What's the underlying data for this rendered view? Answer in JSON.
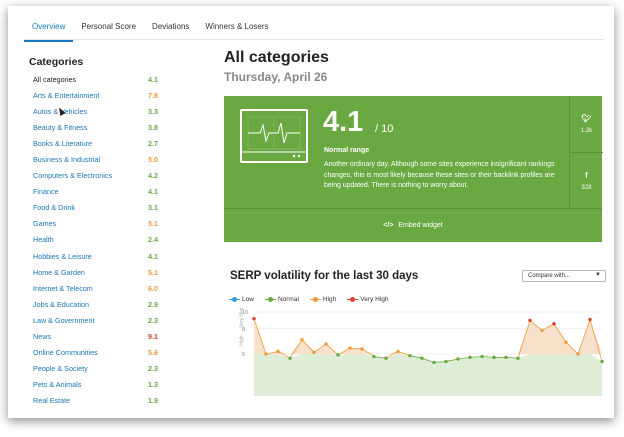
{
  "tabs": [
    "Overview",
    "Personal Score",
    "Deviations",
    "Winners & Losers"
  ],
  "sidebar": {
    "heading": "Categories",
    "items": [
      {
        "name": "All categories",
        "score": "4.1",
        "color": "#6aa842"
      },
      {
        "name": "Arts & Entertainment",
        "score": "7.8",
        "color": "#ef9a3a"
      },
      {
        "name": "Autos & Vehicles",
        "score": "3.3",
        "color": "#6aa842"
      },
      {
        "name": "Beauty & Fitness",
        "score": "3.8",
        "color": "#6aa842"
      },
      {
        "name": "Books & Literature",
        "score": "2.7",
        "color": "#6aa842"
      },
      {
        "name": "Business & Industrial",
        "score": "5.0",
        "color": "#ef9a3a"
      },
      {
        "name": "Computers & Electronics",
        "score": "4.2",
        "color": "#6aa842"
      },
      {
        "name": "Finance",
        "score": "4.1",
        "color": "#6aa842"
      },
      {
        "name": "Food & Drink",
        "score": "3.1",
        "color": "#6aa842"
      },
      {
        "name": "Games",
        "score": "5.1",
        "color": "#ef9a3a"
      },
      {
        "name": "Health",
        "score": "2.4",
        "color": "#6aa842"
      },
      {
        "name": "Hobbies & Leisure",
        "score": "4.1",
        "color": "#6aa842"
      },
      {
        "name": "Home & Garden",
        "score": "5.1",
        "color": "#ef9a3a"
      },
      {
        "name": "Internet & Telecom",
        "score": "6.0",
        "color": "#ef9a3a"
      },
      {
        "name": "Jobs & Education",
        "score": "2.9",
        "color": "#6aa842"
      },
      {
        "name": "Law & Government",
        "score": "2.3",
        "color": "#6aa842"
      },
      {
        "name": "News",
        "score": "9.1",
        "color": "#d9412b"
      },
      {
        "name": "Online Communities",
        "score": "5.6",
        "color": "#ef9a3a"
      },
      {
        "name": "People & Society",
        "score": "2.3",
        "color": "#6aa842"
      },
      {
        "name": "Pets & Animals",
        "score": "1.3",
        "color": "#6aa842"
      },
      {
        "name": "Real Estate",
        "score": "1.9",
        "color": "#6aa842"
      }
    ]
  },
  "main": {
    "title": "All categories",
    "date": "Thursday, April 26",
    "score": "4.1",
    "score_max": "/ 10",
    "range_label": "Normal range",
    "description": "Another ordinary day. Although some sites experience insignificant rankings changes, this is most likely because these sites or their backlink profiles are being updated. There is nothing to worry about.",
    "twitter_count": "1.2k",
    "facebook_count": "328",
    "embed_code": "</>",
    "embed_label": "Embed widget",
    "card_color": "#6aa842"
  },
  "volatility": {
    "title": "SERP volatility for the last 30 days",
    "compare_placeholder": "Compare with...",
    "legend": [
      {
        "name": "Low",
        "color": "#3a9ad9"
      },
      {
        "name": "Normal",
        "color": "#6aa842"
      },
      {
        "name": "High",
        "color": "#ef9a3a"
      },
      {
        "name": "Very High",
        "color": "#d9412b"
      }
    ],
    "axis_labels": [
      "Very High",
      "High"
    ],
    "tick_labels": [
      "10",
      "8",
      "5"
    ]
  },
  "chart_data": {
    "type": "area",
    "ylim": [
      0,
      10
    ],
    "y_ticks": [
      10,
      8,
      5
    ],
    "values": [
      9.2,
      5.0,
      5.3,
      4.5,
      6.7,
      5.2,
      6.2,
      4.9,
      5.7,
      5.6,
      4.7,
      4.5,
      5.3,
      4.8,
      4.5,
      4.0,
      4.1,
      4.4,
      4.6,
      4.7,
      4.6,
      4.6,
      4.5,
      9.0,
      7.8,
      8.6,
      6.4,
      5.0,
      9.1,
      4.1
    ],
    "legend_position": "top-left",
    "grid": true
  }
}
